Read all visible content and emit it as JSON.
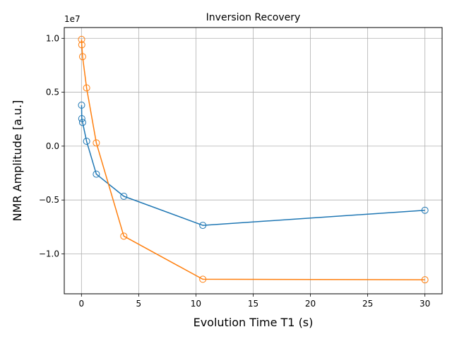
{
  "chart_data": {
    "type": "line",
    "title": "Inversion Recovery",
    "xlabel": "Evolution Time T1 (s)",
    "ylabel": "NMR Amplitude [a.u.]",
    "y_offset_label": "1e7",
    "xlim": [
      -1.5,
      31.5
    ],
    "ylim": [
      -13700000.0,
      11000000.0
    ],
    "x_ticks": [
      0,
      5,
      10,
      15,
      20,
      25,
      30
    ],
    "x_tick_labels": [
      "0",
      "5",
      "10",
      "15",
      "20",
      "25",
      "30"
    ],
    "y_ticks": [
      -10000000.0,
      -5000000.0,
      0,
      5000000.0,
      10000000.0
    ],
    "y_tick_labels": [
      "−1.0",
      "−0.5",
      "0.0",
      "0.5",
      "1.0"
    ],
    "grid": true,
    "marker": "open-circle",
    "series": [
      {
        "color": "#1f77b4",
        "x": [
          0.01,
          0.03,
          0.1,
          0.45,
          1.3,
          3.7,
          10.6,
          30
        ],
        "y": [
          3800000.0,
          2550000.0,
          2200000.0,
          450000.0,
          -2600000.0,
          -4650000.0,
          -7350000.0,
          -5950000.0
        ]
      },
      {
        "color": "#ff7f0e",
        "x": [
          0.01,
          0.03,
          0.1,
          0.45,
          1.3,
          3.7,
          10.6,
          30
        ],
        "y": [
          9900000.0,
          9400000.0,
          8300000.0,
          5400000.0,
          300000.0,
          -8350000.0,
          -12350000.0,
          -12400000.0
        ]
      }
    ]
  }
}
